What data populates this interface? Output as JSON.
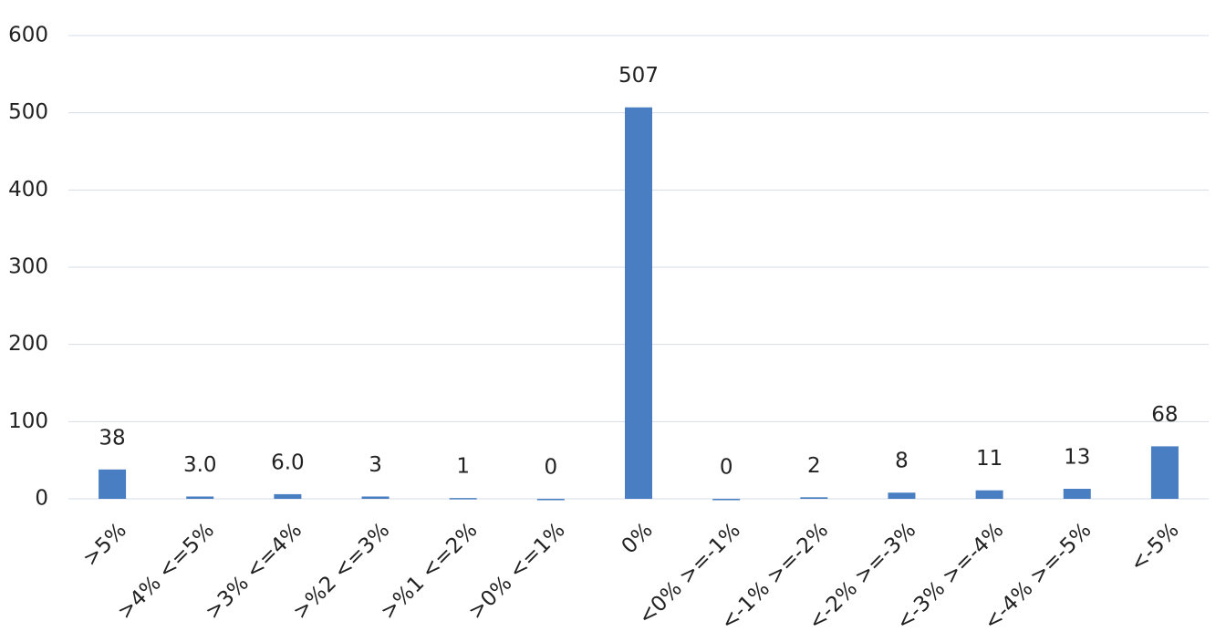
{
  "chart_data": {
    "type": "bar",
    "categories": [
      ">5%",
      ">4% <=5%",
      ">3% <=4%",
      ">%2 <=3%",
      ">%1 <=2%",
      ">0% <=1%",
      "0%",
      "<0% >=-1%",
      "<-1% >=-2%",
      "<-2% >=-3%",
      "<-3% >=-4%",
      "<-4% >=-5%",
      "<-5%"
    ],
    "values": [
      38,
      3,
      6,
      3,
      1,
      0,
      507,
      0,
      2,
      8,
      11,
      13,
      68
    ],
    "value_labels": [
      "38",
      "3.0",
      "6.0",
      "3",
      "1",
      "0",
      "507",
      "0",
      "2",
      "8",
      "11",
      "13",
      "68"
    ],
    "color": "#4a7ec2",
    "ylim": [
      0,
      600
    ],
    "yticks": [
      0,
      100,
      200,
      300,
      400,
      500,
      600
    ],
    "grid": true
  }
}
